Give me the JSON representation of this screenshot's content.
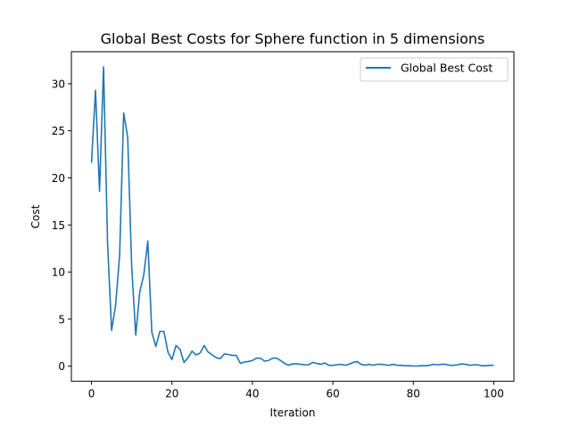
{
  "chart_data": {
    "type": "line",
    "title": "Global Best Costs for Sphere function in 5 dimensions",
    "xlabel": "Iteration",
    "ylabel": "Cost",
    "xlim": [
      -5,
      105
    ],
    "ylim": [
      -1.6,
      33.4
    ],
    "xticks": [
      0,
      20,
      40,
      60,
      80,
      100
    ],
    "yticks": [
      0,
      5,
      10,
      15,
      20,
      25,
      30
    ],
    "grid": false,
    "legend_position": "top-right",
    "series": [
      {
        "name": "Global Best Cost",
        "color": "#1f77b4",
        "x": [
          0,
          1,
          2,
          3,
          4,
          5,
          6,
          7,
          8,
          9,
          10,
          11,
          12,
          13,
          14,
          15,
          16,
          17,
          18,
          19,
          20,
          21,
          22,
          23,
          24,
          25,
          26,
          27,
          28,
          29,
          30,
          31,
          32,
          33,
          34,
          35,
          36,
          37,
          38,
          39,
          40,
          41,
          42,
          43,
          44,
          45,
          46,
          47,
          48,
          49,
          50,
          51,
          52,
          53,
          54,
          55,
          56,
          57,
          58,
          59,
          60,
          61,
          62,
          63,
          64,
          65,
          66,
          67,
          68,
          69,
          70,
          71,
          72,
          73,
          74,
          75,
          76,
          77,
          78,
          79,
          80,
          81,
          82,
          83,
          84,
          85,
          86,
          87,
          88,
          89,
          90,
          91,
          92,
          93,
          94,
          95,
          96,
          97,
          98,
          99,
          100
        ],
        "y": [
          21.6,
          29.3,
          18.6,
          31.8,
          13.0,
          3.8,
          6.5,
          11.8,
          26.9,
          24.3,
          10.5,
          3.3,
          7.9,
          9.7,
          13.3,
          3.6,
          2.1,
          3.7,
          3.7,
          1.5,
          0.7,
          2.2,
          1.8,
          0.4,
          0.9,
          1.6,
          1.2,
          1.4,
          2.2,
          1.5,
          1.2,
          0.9,
          0.8,
          1.3,
          1.25,
          1.15,
          1.15,
          0.3,
          0.45,
          0.5,
          0.6,
          0.85,
          0.85,
          0.55,
          0.6,
          0.85,
          0.85,
          0.6,
          0.3,
          0.1,
          0.25,
          0.25,
          0.2,
          0.15,
          0.15,
          0.4,
          0.3,
          0.2,
          0.35,
          0.1,
          0.1,
          0.15,
          0.2,
          0.1,
          0.2,
          0.4,
          0.5,
          0.2,
          0.1,
          0.2,
          0.1,
          0.2,
          0.2,
          0.15,
          0.1,
          0.2,
          0.1,
          0.1,
          0.05,
          0.05,
          0.02,
          0.03,
          0.05,
          0.05,
          0.1,
          0.2,
          0.15,
          0.2,
          0.2,
          0.1,
          0.1,
          0.15,
          0.25,
          0.2,
          0.1,
          0.15,
          0.15,
          0.05,
          0.05,
          0.1,
          0.1
        ]
      }
    ]
  }
}
